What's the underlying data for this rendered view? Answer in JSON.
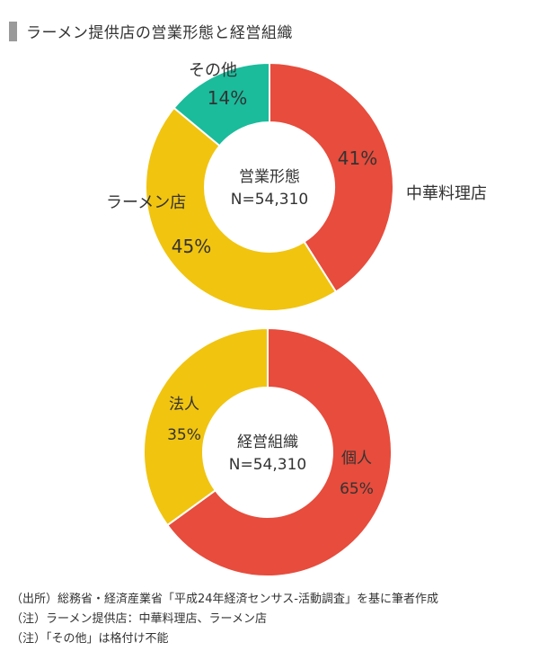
{
  "title": "ラーメン提供店の営業形態と経営組織",
  "chart_data": [
    {
      "type": "pie",
      "center_label": "営業形態",
      "total_label": "N=54,310",
      "slices": [
        {
          "label": "中華料理店",
          "value": 41,
          "value_label": "41%",
          "color": "#e74c3c"
        },
        {
          "label": "ラーメン店",
          "value": 45,
          "value_label": "45%",
          "color": "#f1c40f"
        },
        {
          "label": "その他",
          "value": 14,
          "value_label": "14%",
          "color": "#1abc9c"
        }
      ]
    },
    {
      "type": "pie",
      "center_label": "経営組織",
      "total_label": "N=54,310",
      "slices": [
        {
          "label": "個人",
          "value": 65,
          "value_label": "65%",
          "color": "#e74c3c"
        },
        {
          "label": "法人",
          "value": 35,
          "value_label": "35%",
          "color": "#f1c40f"
        }
      ]
    }
  ],
  "notes": [
    "（出所）総務省・経済産業省「平成24年経済センサス‐活動調査」を基に筆者作成",
    "（注）ラーメン提供店：中華料理店、ラーメン店",
    "（注）「その他」は格付け不能"
  ]
}
